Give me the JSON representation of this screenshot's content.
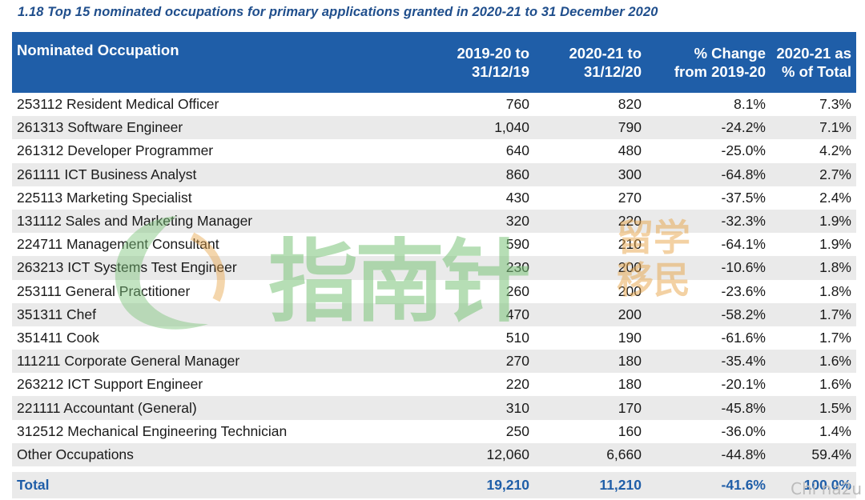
{
  "title": "1.18 Top 15 nominated occupations for primary applications granted in 2020-21 to 31 December 2020",
  "headers": {
    "occupation": "Nominated Occupation",
    "col1_line1": "2019-20 to",
    "col1_line2": "31/12/19",
    "col2_line1": "2020-21 to",
    "col2_line2": "31/12/20",
    "col3_line1": "% Change",
    "col3_line2": "from 2019-20",
    "col4_line1": "2020-21 as",
    "col4_line2": "% of Total"
  },
  "rows": [
    {
      "occupation": "253112 Resident Medical Officer",
      "prev": "760",
      "curr": "820",
      "change": "8.1%",
      "share": "7.3%"
    },
    {
      "occupation": "261313 Software Engineer",
      "prev": "1,040",
      "curr": "790",
      "change": "-24.2%",
      "share": "7.1%"
    },
    {
      "occupation": "261312 Developer Programmer",
      "prev": "640",
      "curr": "480",
      "change": "-25.0%",
      "share": "4.2%"
    },
    {
      "occupation": "261111 ICT Business Analyst",
      "prev": "860",
      "curr": "300",
      "change": "-64.8%",
      "share": "2.7%"
    },
    {
      "occupation": "225113 Marketing Specialist",
      "prev": "430",
      "curr": "270",
      "change": "-37.5%",
      "share": "2.4%"
    },
    {
      "occupation": "131112 Sales and Marketing Manager",
      "prev": "320",
      "curr": "220",
      "change": "-32.3%",
      "share": "1.9%"
    },
    {
      "occupation": "224711 Management Consultant",
      "prev": "590",
      "curr": "210",
      "change": "-64.1%",
      "share": "1.9%"
    },
    {
      "occupation": "263213 ICT Systems Test Engineer",
      "prev": "230",
      "curr": "200",
      "change": "-10.6%",
      "share": "1.8%"
    },
    {
      "occupation": "253111 General Practitioner",
      "prev": "260",
      "curr": "200",
      "change": "-23.6%",
      "share": "1.8%"
    },
    {
      "occupation": "351311 Chef",
      "prev": "470",
      "curr": "200",
      "change": "-58.2%",
      "share": "1.7%"
    },
    {
      "occupation": "351411 Cook",
      "prev": "510",
      "curr": "190",
      "change": "-61.6%",
      "share": "1.7%"
    },
    {
      "occupation": "111211 Corporate General Manager",
      "prev": "270",
      "curr": "180",
      "change": "-35.4%",
      "share": "1.6%"
    },
    {
      "occupation": "263212 ICT Support Engineer",
      "prev": "220",
      "curr": "180",
      "change": "-20.1%",
      "share": "1.6%"
    },
    {
      "occupation": "221111 Accountant (General)",
      "prev": "310",
      "curr": "170",
      "change": "-45.8%",
      "share": "1.5%"
    },
    {
      "occupation": "312512 Mechanical Engineering Technician",
      "prev": "250",
      "curr": "160",
      "change": "-36.0%",
      "share": "1.4%"
    },
    {
      "occupation": "Other Occupations",
      "prev": "12,060",
      "curr": "6,660",
      "change": "-44.8%",
      "share": "59.4%"
    }
  ],
  "total": {
    "label": "Total",
    "prev": "19,210",
    "curr": "11,210",
    "change": "-41.6%",
    "share": "100.0%"
  },
  "watermark": {
    "main": "指南针",
    "side_top": "留学",
    "side_bottom": "移民",
    "corner": "Chi na2u"
  },
  "colors": {
    "header_bg": "#1f5ea8",
    "title": "#1f4e8c",
    "stripe": "#eaeaea",
    "total_text": "#1f5ea8"
  }
}
